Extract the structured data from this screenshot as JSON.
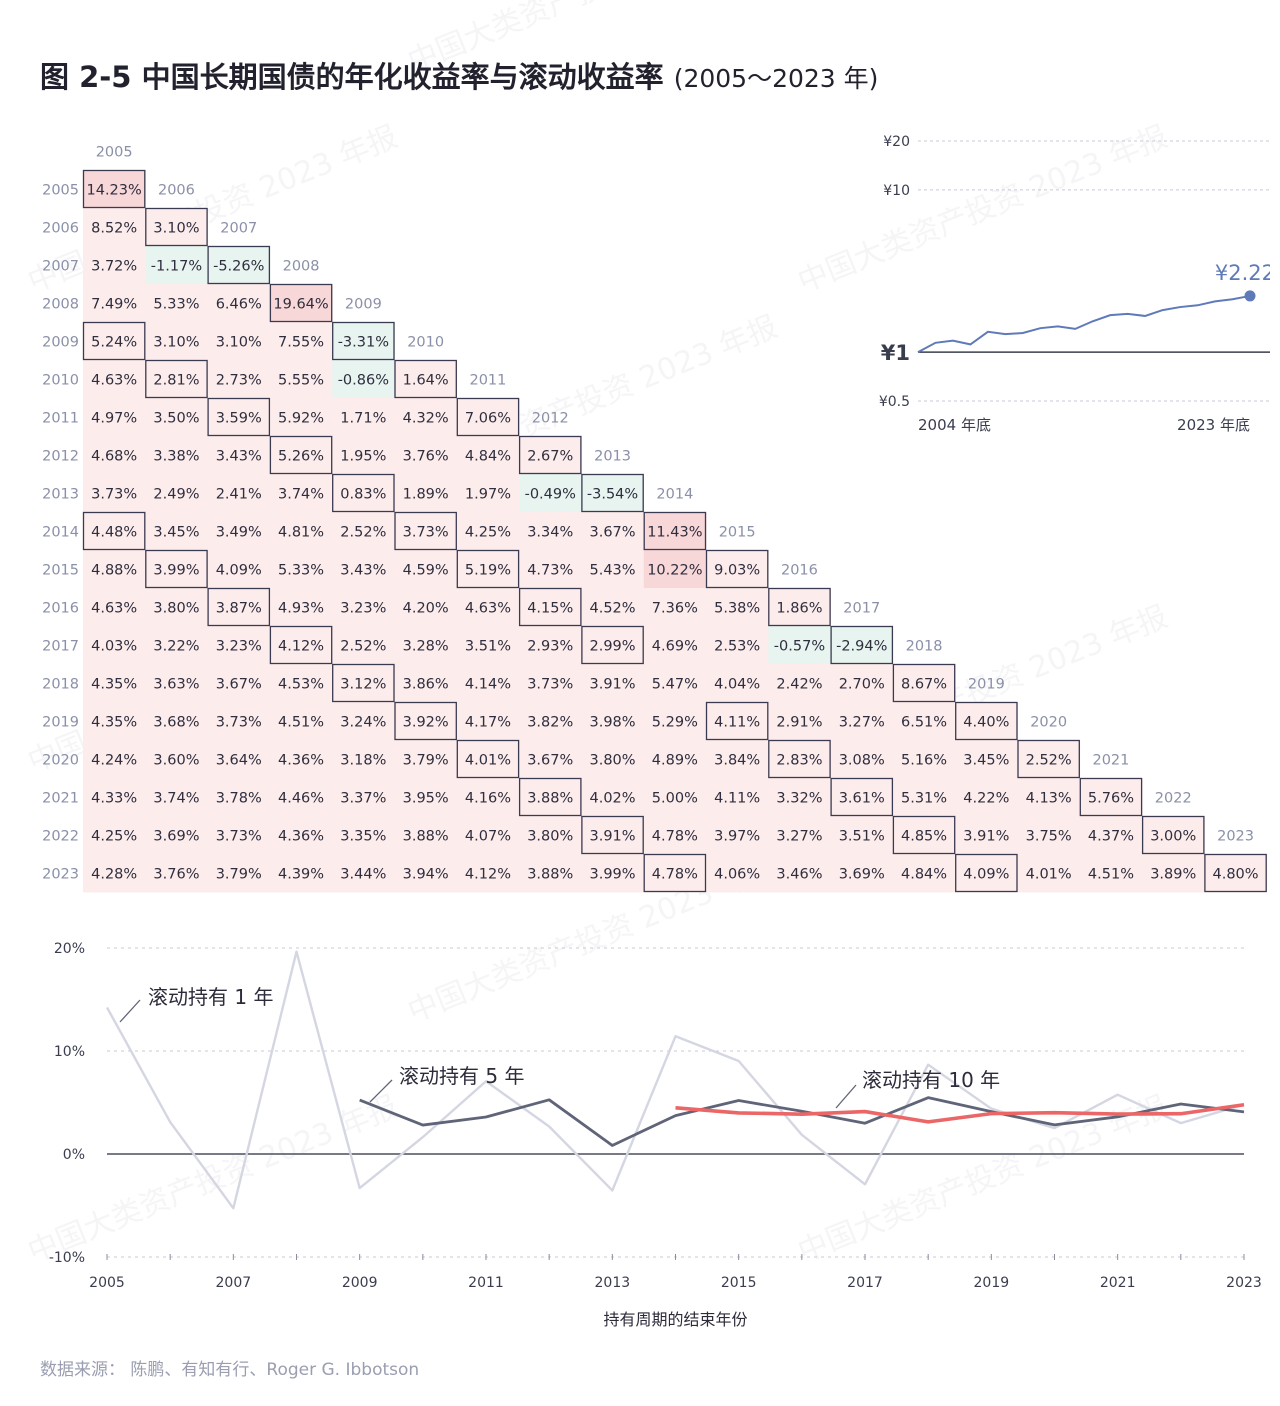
{
  "title": {
    "main": "图 2-5  中国长期国债的年化收益率与滚动收益率",
    "years": "(2005～2023 年)"
  },
  "source": "数据来源： 陈鹏、有知有行、Roger G. Ibbotson",
  "watermark": "中国大类资产投资 2023 年报",
  "colors": {
    "positive_fill": "#fdecec",
    "strong_positive_fill": "#f8d7d9",
    "negative_fill": "#e8f4f0",
    "box_border": "#3a3a50",
    "year_label": "#8a90a8",
    "line_1yr": "#d4d6e2",
    "line_5yr": "#5f6478",
    "line_10yr": "#eb6666",
    "mini_line": "#5f7ab8"
  },
  "chart_data": [
    {
      "type": "heatmap",
      "description": "Annualized return from start year (column) to end year (row)",
      "years": [
        "2005",
        "2006",
        "2007",
        "2008",
        "2009",
        "2010",
        "2011",
        "2012",
        "2013",
        "2014",
        "2015",
        "2016",
        "2017",
        "2018",
        "2019",
        "2020",
        "2021",
        "2022",
        "2023"
      ],
      "rows": [
        [
          "14.23%"
        ],
        [
          "8.52%",
          "3.10%"
        ],
        [
          "3.72%",
          "-1.17%",
          "-5.26%"
        ],
        [
          "7.49%",
          "5.33%",
          "6.46%",
          "19.64%"
        ],
        [
          "5.24%",
          "3.10%",
          "3.10%",
          "7.55%",
          "-3.31%"
        ],
        [
          "4.63%",
          "2.81%",
          "2.73%",
          "5.55%",
          "-0.86%",
          "1.64%"
        ],
        [
          "4.97%",
          "3.50%",
          "3.59%",
          "5.92%",
          "1.71%",
          "4.32%",
          "7.06%"
        ],
        [
          "4.68%",
          "3.38%",
          "3.43%",
          "5.26%",
          "1.95%",
          "3.76%",
          "4.84%",
          "2.67%"
        ],
        [
          "3.73%",
          "2.49%",
          "2.41%",
          "3.74%",
          "0.83%",
          "1.89%",
          "1.97%",
          "-0.49%",
          "-3.54%"
        ],
        [
          "4.48%",
          "3.45%",
          "3.49%",
          "4.81%",
          "2.52%",
          "3.73%",
          "4.25%",
          "3.34%",
          "3.67%",
          "11.43%"
        ],
        [
          "4.88%",
          "3.99%",
          "4.09%",
          "5.33%",
          "3.43%",
          "4.59%",
          "5.19%",
          "4.73%",
          "5.43%",
          "10.22%",
          "9.03%"
        ],
        [
          "4.63%",
          "3.80%",
          "3.87%",
          "4.93%",
          "3.23%",
          "4.20%",
          "4.63%",
          "4.15%",
          "4.52%",
          "7.36%",
          "5.38%",
          "1.86%"
        ],
        [
          "4.03%",
          "3.22%",
          "3.23%",
          "4.12%",
          "2.52%",
          "3.28%",
          "3.51%",
          "2.93%",
          "2.99%",
          "4.69%",
          "2.53%",
          "-0.57%",
          "-2.94%"
        ],
        [
          "4.35%",
          "3.63%",
          "3.67%",
          "4.53%",
          "3.12%",
          "3.86%",
          "4.14%",
          "3.73%",
          "3.91%",
          "5.47%",
          "4.04%",
          "2.42%",
          "2.70%",
          "8.67%"
        ],
        [
          "4.35%",
          "3.68%",
          "3.73%",
          "4.51%",
          "3.24%",
          "3.92%",
          "4.17%",
          "3.82%",
          "3.98%",
          "5.29%",
          "4.11%",
          "2.91%",
          "3.27%",
          "6.51%",
          "4.40%"
        ],
        [
          "4.24%",
          "3.60%",
          "3.64%",
          "4.36%",
          "3.18%",
          "3.79%",
          "4.01%",
          "3.67%",
          "3.80%",
          "4.89%",
          "3.84%",
          "2.83%",
          "3.08%",
          "5.16%",
          "3.45%",
          "2.52%"
        ],
        [
          "4.33%",
          "3.74%",
          "3.78%",
          "4.46%",
          "3.37%",
          "3.95%",
          "4.16%",
          "3.88%",
          "4.02%",
          "5.00%",
          "4.11%",
          "3.32%",
          "3.61%",
          "5.31%",
          "4.22%",
          "4.13%",
          "5.76%"
        ],
        [
          "4.25%",
          "3.69%",
          "3.73%",
          "4.36%",
          "3.35%",
          "3.88%",
          "4.07%",
          "3.80%",
          "3.91%",
          "4.78%",
          "3.97%",
          "3.27%",
          "3.51%",
          "4.85%",
          "3.91%",
          "3.75%",
          "4.37%",
          "3.00%"
        ],
        [
          "4.28%",
          "3.76%",
          "3.79%",
          "4.39%",
          "3.44%",
          "3.94%",
          "4.12%",
          "3.88%",
          "3.99%",
          "4.78%",
          "4.06%",
          "3.46%",
          "3.69%",
          "4.84%",
          "4.09%",
          "4.01%",
          "4.51%",
          "3.89%",
          "4.80%"
        ]
      ],
      "boxed_cells": [
        [
          0,
          0
        ],
        [
          1,
          1
        ],
        [
          2,
          2
        ],
        [
          3,
          3
        ],
        [
          4,
          4
        ],
        [
          5,
          5
        ],
        [
          6,
          6
        ],
        [
          7,
          7
        ],
        [
          8,
          8
        ],
        [
          9,
          9
        ],
        [
          10,
          10
        ],
        [
          11,
          11
        ],
        [
          12,
          12
        ],
        [
          13,
          13
        ],
        [
          14,
          14
        ],
        [
          15,
          15
        ],
        [
          16,
          16
        ],
        [
          17,
          17
        ],
        [
          18,
          18
        ],
        [
          4,
          0
        ],
        [
          9,
          0
        ],
        [
          5,
          1
        ],
        [
          10,
          1
        ],
        [
          6,
          2
        ],
        [
          11,
          2
        ],
        [
          7,
          3
        ],
        [
          12,
          3
        ],
        [
          8,
          4
        ],
        [
          13,
          4
        ],
        [
          9,
          5
        ],
        [
          14,
          5
        ],
        [
          10,
          6
        ],
        [
          15,
          6
        ],
        [
          11,
          7
        ],
        [
          16,
          7
        ],
        [
          12,
          8
        ],
        [
          17,
          8
        ],
        [
          18,
          9
        ],
        [
          14,
          10
        ],
        [
          15,
          11
        ],
        [
          16,
          12
        ],
        [
          17,
          13
        ],
        [
          18,
          14
        ]
      ]
    },
    {
      "type": "line",
      "description": "Cumulative value of ¥1 invested at end of 2004 (log scale)",
      "x_labels": [
        "2004 年底",
        "2023 年底"
      ],
      "y_ticks": [
        "¥20",
        "¥10",
        "¥1",
        "¥0.5"
      ],
      "y_tick_values": [
        20,
        10,
        1,
        0.5
      ],
      "yscale": "log",
      "end_label": "¥2.22",
      "x": [
        "2004",
        "2005",
        "2006",
        "2007",
        "2008",
        "2009",
        "2010",
        "2011",
        "2012",
        "2013",
        "2014",
        "2015",
        "2016",
        "2017",
        "2018",
        "2019",
        "2020",
        "2021",
        "2022",
        "2023"
      ],
      "values": [
        1.0,
        1.142,
        1.178,
        1.116,
        1.335,
        1.291,
        1.312,
        1.405,
        1.442,
        1.391,
        1.55,
        1.69,
        1.722,
        1.671,
        1.816,
        1.896,
        1.944,
        2.056,
        2.118,
        2.22
      ]
    },
    {
      "type": "line",
      "x": [
        2005,
        2006,
        2007,
        2008,
        2009,
        2010,
        2011,
        2012,
        2013,
        2014,
        2015,
        2016,
        2017,
        2018,
        2019,
        2020,
        2021,
        2022,
        2023
      ],
      "xlabel": "持有周期的结束年份",
      "x_ticks": [
        "2005",
        "2007",
        "2009",
        "2011",
        "2013",
        "2015",
        "2017",
        "2019",
        "2021",
        "2023"
      ],
      "y_ticks": [
        "20%",
        "10%",
        "0%",
        "-10%"
      ],
      "ylim": [
        -10,
        20
      ],
      "series": [
        {
          "name": "滚动持有 1 年",
          "values": [
            14.23,
            3.1,
            -5.26,
            19.64,
            -3.31,
            1.64,
            7.06,
            2.67,
            -3.54,
            11.43,
            9.03,
            1.86,
            -2.94,
            8.67,
            4.4,
            2.52,
            5.76,
            3.0,
            4.8
          ]
        },
        {
          "name": "滚动持有 5 年",
          "values": [
            null,
            null,
            null,
            null,
            5.24,
            2.81,
            3.59,
            5.26,
            0.83,
            3.73,
            5.19,
            4.15,
            2.99,
            5.47,
            4.11,
            2.83,
            3.61,
            4.85,
            4.09
          ]
        },
        {
          "name": "滚动持有 10 年",
          "values": [
            null,
            null,
            null,
            null,
            null,
            null,
            null,
            null,
            null,
            4.48,
            3.99,
            3.87,
            4.12,
            3.12,
            3.92,
            4.01,
            3.88,
            3.91,
            4.78
          ]
        }
      ]
    }
  ]
}
